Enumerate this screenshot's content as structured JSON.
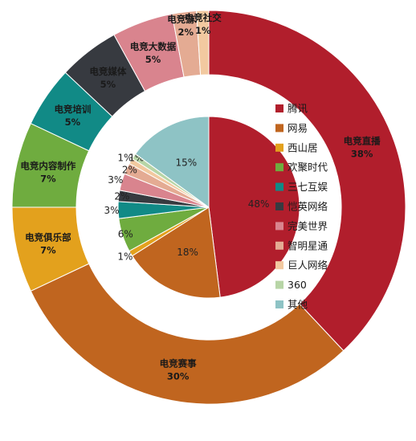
{
  "chart_data": [
    {
      "type": "pie",
      "ring": "outer",
      "categories": [
        "电竞直播",
        "电竞赛事",
        "电竞俱乐部",
        "电竞内容制作",
        "电竞培训",
        "电竞媒体",
        "电竞大数据",
        "电竞游戏",
        "电竞社交"
      ],
      "values": [
        38,
        30,
        7,
        7,
        5,
        5,
        5,
        2,
        1
      ],
      "value_labels": [
        "38%",
        "30%",
        "7%",
        "7%",
        "5%",
        "5%",
        "5%",
        "2%",
        "1%"
      ],
      "colors": [
        "#b11e2c",
        "#c0651f",
        "#e3a11d",
        "#6fac3f",
        "#118a86",
        "#373a40",
        "#d9848e",
        "#e4ab93",
        "#f2c9a0"
      ]
    },
    {
      "type": "pie",
      "ring": "inner",
      "categories": [
        "腾讯",
        "网易",
        "西山居",
        "欢聚时代",
        "三七互娱",
        "恺英网络",
        "完美世界",
        "智明星通",
        "巨人网络",
        "360",
        "其他"
      ],
      "values": [
        48,
        18,
        1,
        6,
        3,
        2,
        3,
        2,
        1,
        1,
        15
      ],
      "value_labels": [
        "48%",
        "18%",
        "1%",
        "6%",
        "3%",
        "2%",
        "3%",
        "2%",
        "1%",
        "1%",
        "15%"
      ],
      "colors": [
        "#b11e2c",
        "#c0651f",
        "#e3a11d",
        "#6fac3f",
        "#118a86",
        "#373a40",
        "#d9848e",
        "#e4ab93",
        "#f2c9a0",
        "#b7d5a6",
        "#8ec3c5"
      ]
    }
  ],
  "legend": {
    "items": [
      {
        "label": "腾讯",
        "color": "#b11e2c"
      },
      {
        "label": "网易",
        "color": "#c0651f"
      },
      {
        "label": "西山居",
        "color": "#e3a11d"
      },
      {
        "label": "欢聚时代",
        "color": "#6fac3f"
      },
      {
        "label": "三七互娱",
        "color": "#118a86"
      },
      {
        "label": "恺英网络",
        "color": "#373a40"
      },
      {
        "label": "完美世界",
        "color": "#d9848e"
      },
      {
        "label": "智明星通",
        "color": "#e4ab93"
      },
      {
        "label": "巨人网络",
        "color": "#f2c9a0"
      },
      {
        "label": "360",
        "color": "#b7d5a6"
      },
      {
        "label": "其他",
        "color": "#8ec3c5"
      }
    ]
  }
}
